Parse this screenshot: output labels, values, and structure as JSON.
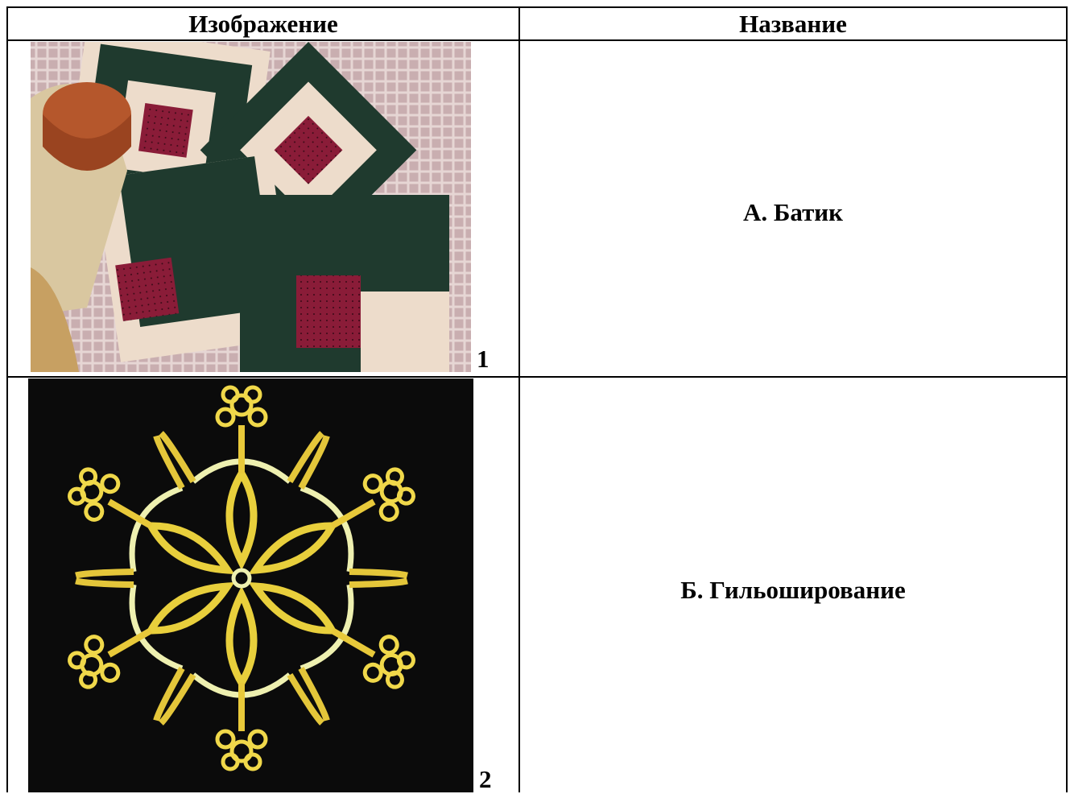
{
  "table": {
    "header": [
      "Изображение",
      "Название"
    ],
    "rows": [
      [
        "1",
        "А. Батик"
      ],
      [
        "2",
        "Б. Гильоширование"
      ]
    ]
  }
}
